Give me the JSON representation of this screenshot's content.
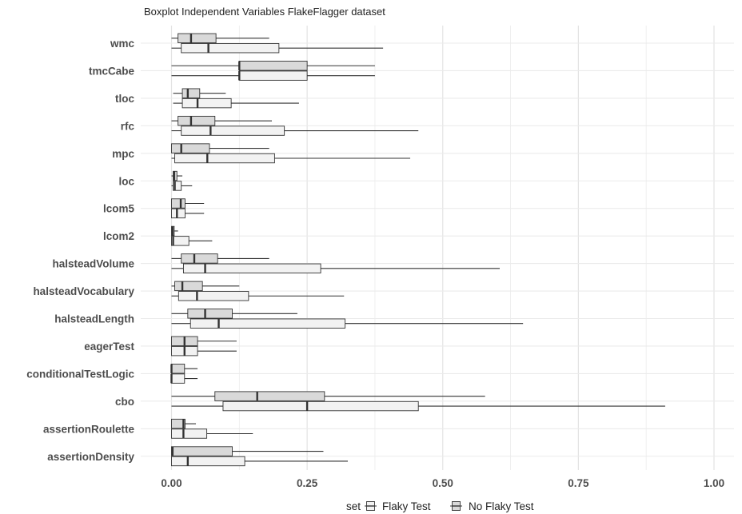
{
  "chart_data": {
    "type": "boxplot",
    "title": "Boxplot Independent Variables FlakeFlagger dataset",
    "xlim": [
      0,
      1.04
    ],
    "x_ticks": [
      0.0,
      0.25,
      0.5,
      0.75,
      1.0
    ],
    "x_tick_labels": [
      "0.00",
      "0.25",
      "0.50",
      "0.75",
      "1.00"
    ],
    "grid": true,
    "legend_position": "bottom",
    "legend_title": "set",
    "series": [
      {
        "name": "Flaky Test",
        "fill": "#f2f2f2"
      },
      {
        "name": "No Flaky Test",
        "fill": "#d9d9d9"
      }
    ],
    "categories": [
      "wmc",
      "tmcCabe",
      "tloc",
      "rfc",
      "mpc",
      "loc",
      "lcom5",
      "lcom2",
      "halsteadVolume",
      "halsteadVocabulary",
      "halsteadLength",
      "eagerTest",
      "conditionalTestLogic",
      "cbo",
      "assertionRoulette",
      "assertionDensity"
    ],
    "boxes": {
      "wmc": {
        "No Flaky Test": {
          "min": 0.0,
          "q1": 0.012,
          "median": 0.036,
          "q3": 0.082,
          "max": 0.18
        },
        "Flaky Test": {
          "min": 0.0,
          "q1": 0.018,
          "median": 0.068,
          "q3": 0.198,
          "max": 0.39
        }
      },
      "tmcCabe": {
        "No Flaky Test": {
          "min": 0.0,
          "q1": 0.125,
          "median": 0.125,
          "q3": 0.25,
          "max": 0.375
        },
        "Flaky Test": {
          "min": 0.0,
          "q1": 0.125,
          "median": 0.125,
          "q3": 0.25,
          "max": 0.375
        }
      },
      "tloc": {
        "No Flaky Test": {
          "min": 0.003,
          "q1": 0.02,
          "median": 0.03,
          "q3": 0.052,
          "max": 0.1
        },
        "Flaky Test": {
          "min": 0.003,
          "q1": 0.02,
          "median": 0.048,
          "q3": 0.11,
          "max": 0.235
        }
      },
      "rfc": {
        "No Flaky Test": {
          "min": 0.0,
          "q1": 0.012,
          "median": 0.036,
          "q3": 0.08,
          "max": 0.185
        },
        "Flaky Test": {
          "min": 0.0,
          "q1": 0.018,
          "median": 0.072,
          "q3": 0.208,
          "max": 0.455
        }
      },
      "mpc": {
        "No Flaky Test": {
          "min": 0.0,
          "q1": 0.0,
          "median": 0.018,
          "q3": 0.07,
          "max": 0.18
        },
        "Flaky Test": {
          "min": 0.0,
          "q1": 0.006,
          "median": 0.066,
          "q3": 0.19,
          "max": 0.44
        }
      },
      "loc": {
        "No Flaky Test": {
          "min": 0.0,
          "q1": 0.003,
          "median": 0.005,
          "q3": 0.01,
          "max": 0.02
        },
        "Flaky Test": {
          "min": 0.0,
          "q1": 0.003,
          "median": 0.006,
          "q3": 0.018,
          "max": 0.038
        }
      },
      "lcom5": {
        "No Flaky Test": {
          "min": 0.0,
          "q1": 0.0,
          "median": 0.017,
          "q3": 0.025,
          "max": 0.06
        },
        "Flaky Test": {
          "min": 0.0,
          "q1": 0.0,
          "median": 0.01,
          "q3": 0.025,
          "max": 0.06
        }
      },
      "lcom2": {
        "No Flaky Test": {
          "min": 0.0,
          "q1": 0.0,
          "median": 0.002,
          "q3": 0.005,
          "max": 0.012
        },
        "Flaky Test": {
          "min": 0.0,
          "q1": 0.0,
          "median": 0.003,
          "q3": 0.032,
          "max": 0.075
        }
      },
      "halsteadVolume": {
        "No Flaky Test": {
          "min": 0.0,
          "q1": 0.018,
          "median": 0.042,
          "q3": 0.085,
          "max": 0.18
        },
        "Flaky Test": {
          "min": 0.0,
          "q1": 0.022,
          "median": 0.062,
          "q3": 0.275,
          "max": 0.605
        }
      },
      "halsteadVocabulary": {
        "No Flaky Test": {
          "min": 0.0,
          "q1": 0.006,
          "median": 0.02,
          "q3": 0.057,
          "max": 0.125
        },
        "Flaky Test": {
          "min": 0.0,
          "q1": 0.013,
          "median": 0.047,
          "q3": 0.142,
          "max": 0.318
        }
      },
      "halsteadLength": {
        "No Flaky Test": {
          "min": 0.0,
          "q1": 0.03,
          "median": 0.062,
          "q3": 0.112,
          "max": 0.232
        },
        "Flaky Test": {
          "min": 0.0,
          "q1": 0.035,
          "median": 0.087,
          "q3": 0.32,
          "max": 0.648
        }
      },
      "eagerTest": {
        "No Flaky Test": {
          "min": 0.0,
          "q1": 0.0,
          "median": 0.024,
          "q3": 0.048,
          "max": 0.12
        },
        "Flaky Test": {
          "min": 0.0,
          "q1": 0.0,
          "median": 0.024,
          "q3": 0.048,
          "max": 0.12
        }
      },
      "conditionalTestLogic": {
        "No Flaky Test": {
          "min": 0.0,
          "q1": 0.0,
          "median": 0.0,
          "q3": 0.024,
          "max": 0.048
        },
        "Flaky Test": {
          "min": 0.0,
          "q1": 0.0,
          "median": 0.0,
          "q3": 0.024,
          "max": 0.048
        }
      },
      "cbo": {
        "No Flaky Test": {
          "min": 0.0,
          "q1": 0.08,
          "median": 0.158,
          "q3": 0.282,
          "max": 0.578
        },
        "Flaky Test": {
          "min": 0.0,
          "q1": 0.095,
          "median": 0.25,
          "q3": 0.455,
          "max": 0.91
        }
      },
      "assertionRoulette": {
        "No Flaky Test": {
          "min": 0.0,
          "q1": 0.0,
          "median": 0.022,
          "q3": 0.025,
          "max": 0.045
        },
        "Flaky Test": {
          "min": 0.0,
          "q1": 0.0,
          "median": 0.022,
          "q3": 0.065,
          "max": 0.15
        }
      },
      "assertionDensity": {
        "No Flaky Test": {
          "min": 0.0,
          "q1": 0.0,
          "median": 0.002,
          "q3": 0.112,
          "max": 0.28
        },
        "Flaky Test": {
          "min": 0.0,
          "q1": 0.0,
          "median": 0.03,
          "q3": 0.135,
          "max": 0.325
        }
      }
    }
  }
}
